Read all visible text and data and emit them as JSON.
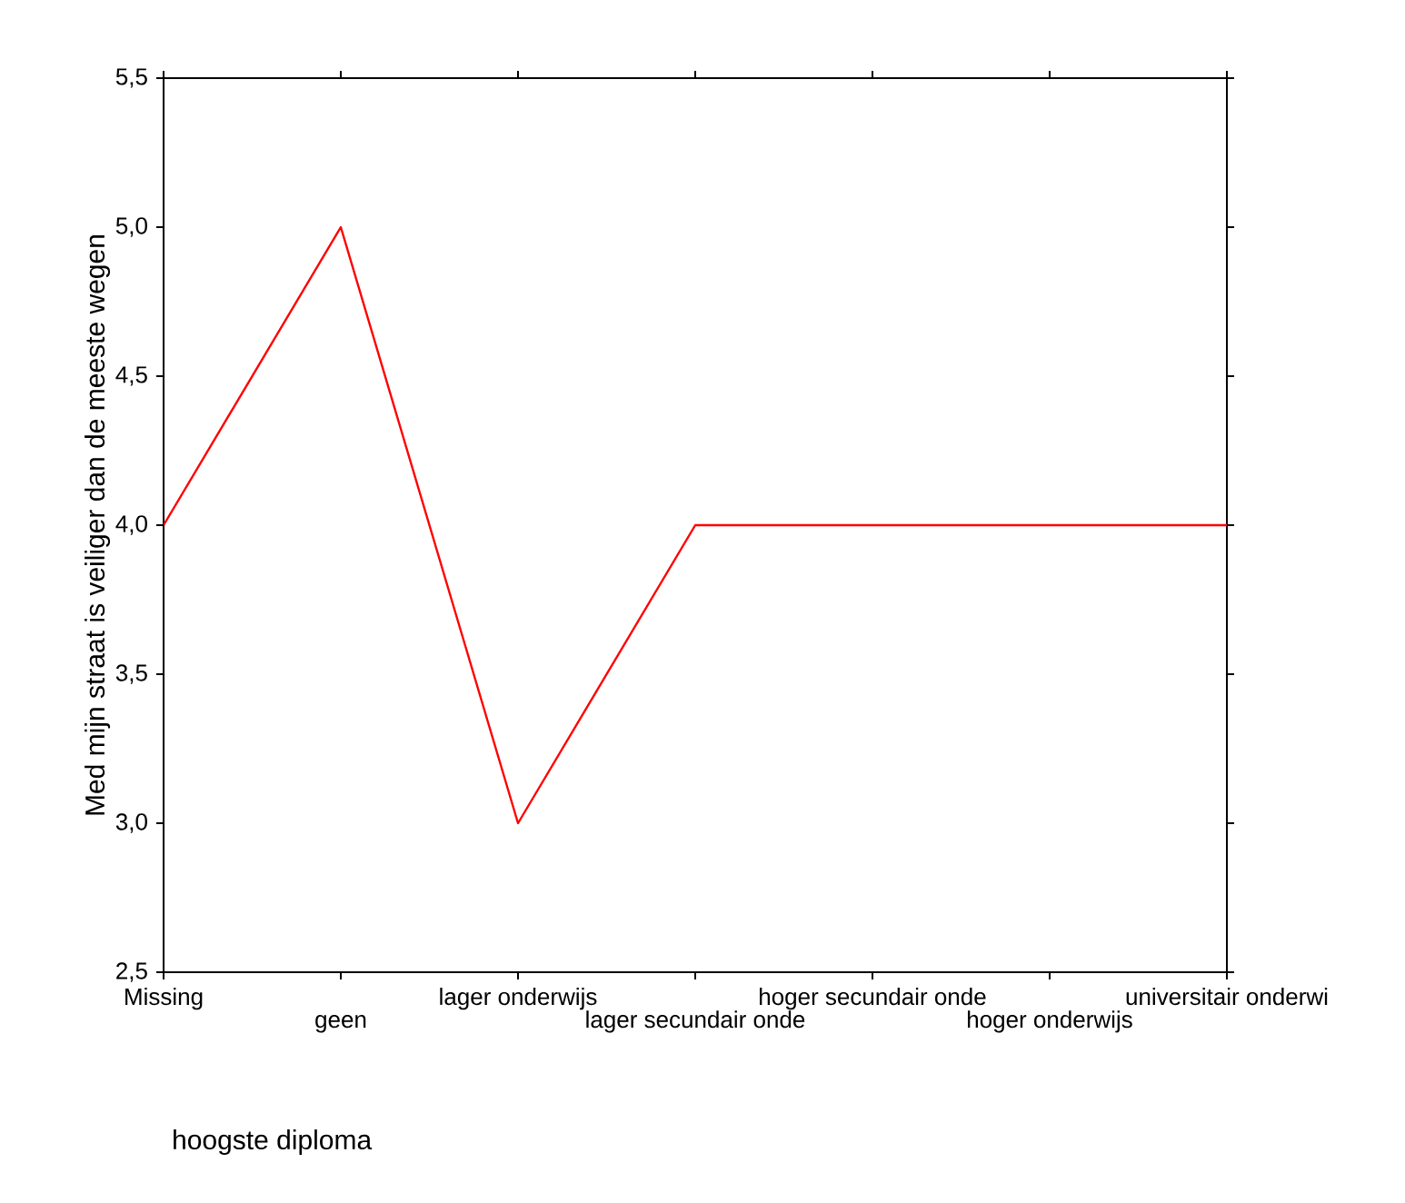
{
  "chart_data": {
    "type": "line",
    "xlabel": "hoogste diploma",
    "ylabel": "Med mijn straat is veiliger dan de meeste wegen",
    "categories": [
      "Missing",
      "geen",
      "lager onderwijs",
      "lager secundair onde",
      "hoger secundair onde",
      "hoger onderwijs",
      "universitair onderwi"
    ],
    "values": [
      4,
      5,
      3,
      4,
      4,
      4,
      4
    ],
    "color": "#ff0000",
    "marker": "none",
    "line_style": "solid",
    "ylim": [
      2.5,
      5.5
    ],
    "yticks": [
      {
        "value": 2.5,
        "label": "2,5"
      },
      {
        "value": 3,
        "label": "3,0"
      },
      {
        "value": 3.5,
        "label": "3,5"
      },
      {
        "value": 4,
        "label": "4,0"
      },
      {
        "value": 4.5,
        "label": "4,5"
      },
      {
        "value": 5,
        "label": "5,0"
      },
      {
        "value": 5.5,
        "label": "5,5"
      }
    ]
  }
}
